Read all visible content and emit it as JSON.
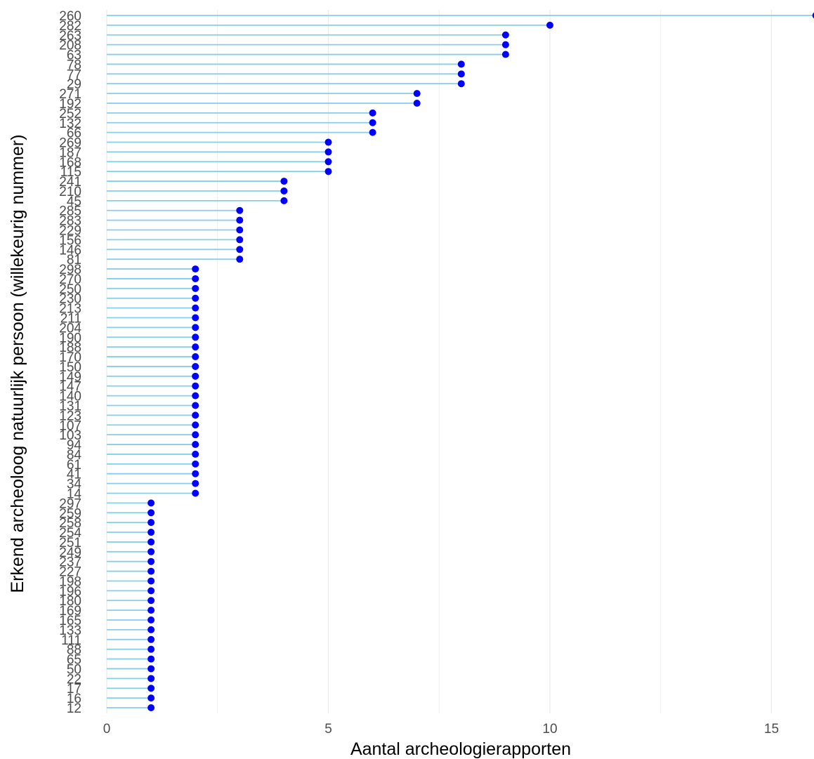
{
  "chart_data": {
    "type": "lollipop",
    "orientation": "horizontal",
    "title": "",
    "xlabel": "Aantal archeologierapporten",
    "ylabel": "Erkend archeoloog natuurlijk persoon (willekeurig nummer)",
    "xlim": [
      0,
      16
    ],
    "x_ticks": [
      "0",
      "5",
      "10",
      "15"
    ],
    "x_tick_values": [
      0,
      5,
      10,
      15
    ],
    "x_minor_tick_values": [
      2.5,
      7.5,
      12.5
    ],
    "grid": true,
    "legend": "none",
    "categories": [
      "260",
      "282",
      "263",
      "208",
      "63",
      "78",
      "77",
      "29",
      "271",
      "192",
      "252",
      "132",
      "66",
      "269",
      "187",
      "168",
      "115",
      "241",
      "210",
      "45",
      "285",
      "283",
      "229",
      "156",
      "146",
      "81",
      "298",
      "270",
      "250",
      "230",
      "213",
      "211",
      "204",
      "190",
      "188",
      "170",
      "150",
      "149",
      "147",
      "140",
      "131",
      "123",
      "107",
      "103",
      "94",
      "84",
      "61",
      "41",
      "34",
      "14",
      "297",
      "259",
      "258",
      "254",
      "251",
      "249",
      "237",
      "227",
      "198",
      "196",
      "180",
      "169",
      "165",
      "133",
      "111",
      "88",
      "65",
      "50",
      "22",
      "17",
      "16",
      "12"
    ],
    "values": [
      16,
      10,
      9,
      9,
      9,
      8,
      8,
      8,
      7,
      7,
      6,
      6,
      6,
      5,
      5,
      5,
      5,
      4,
      4,
      4,
      3,
      3,
      3,
      3,
      3,
      3,
      2,
      2,
      2,
      2,
      2,
      2,
      2,
      2,
      2,
      2,
      2,
      2,
      2,
      2,
      2,
      2,
      2,
      2,
      2,
      2,
      2,
      2,
      2,
      2,
      1,
      1,
      1,
      1,
      1,
      1,
      1,
      1,
      1,
      1,
      1,
      1,
      1,
      1,
      1,
      1,
      1,
      1,
      1,
      1,
      1,
      1
    ],
    "colors": {
      "stem": "#87ceeb",
      "point": "#0000ff",
      "grid": "#ebebeb",
      "tick_text": "#4d4d4d"
    }
  }
}
